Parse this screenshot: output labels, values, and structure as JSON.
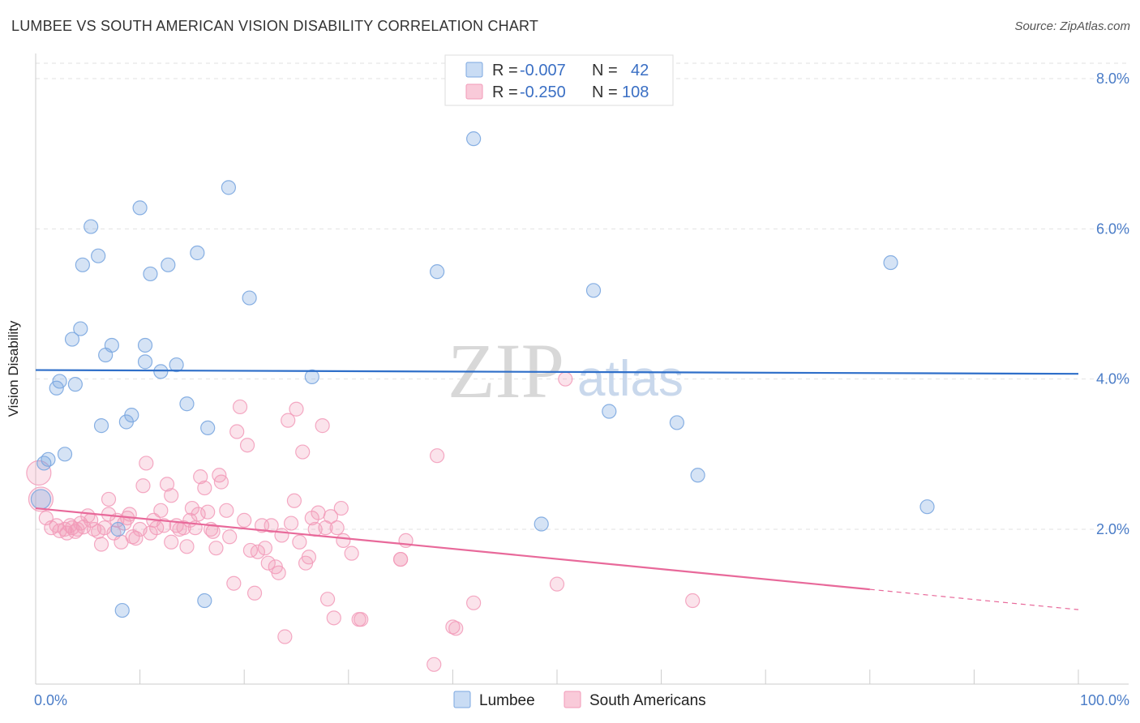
{
  "chart_data": {
    "type": "scatter",
    "title": "LUMBEE VS SOUTH AMERICAN VISION DISABILITY CORRELATION CHART",
    "source": "Source: ZipAtlas.com",
    "xlabel": "",
    "ylabel": "Vision Disability",
    "xlim": [
      0,
      100
    ],
    "ylim": [
      0,
      8.0
    ],
    "x_tick_labels": [
      "0.0%",
      "100.0%"
    ],
    "y_ticks": [
      2.0,
      4.0,
      6.0,
      8.0
    ],
    "y_tick_labels": [
      "2.0%",
      "4.0%",
      "6.0%",
      "8.0%"
    ],
    "watermark": "ZIPatlas",
    "legend": [
      {
        "name": "Lumbee",
        "r_label": "R = ",
        "r_value": "-0.007",
        "n_label": "N = ",
        "n_value": "42",
        "color": "#7ba7e0"
      },
      {
        "name": "South Americans",
        "r_label": "R = ",
        "r_value": "-0.250",
        "n_label": "N = ",
        "n_value": "108",
        "color": "#f29ab8"
      }
    ],
    "series": [
      {
        "name": "Lumbee",
        "color": "#7ba7e0",
        "trend": {
          "x0": 0,
          "y0": 4.12,
          "x1": 100,
          "y1": 4.07
        },
        "points": [
          [
            0.5,
            2.4
          ],
          [
            0.8,
            2.88
          ],
          [
            1.2,
            2.93
          ],
          [
            2.0,
            3.88
          ],
          [
            2.3,
            3.97
          ],
          [
            2.8,
            3.0
          ],
          [
            3.5,
            4.53
          ],
          [
            3.8,
            3.93
          ],
          [
            4.3,
            4.67
          ],
          [
            4.5,
            5.52
          ],
          [
            5.3,
            6.03
          ],
          [
            6.0,
            5.64
          ],
          [
            6.3,
            3.38
          ],
          [
            6.7,
            4.32
          ],
          [
            7.3,
            4.45
          ],
          [
            7.9,
            2.0
          ],
          [
            8.3,
            0.92
          ],
          [
            8.7,
            3.43
          ],
          [
            9.2,
            3.52
          ],
          [
            10.0,
            6.28
          ],
          [
            10.5,
            4.23
          ],
          [
            10.5,
            4.45
          ],
          [
            11.0,
            5.4
          ],
          [
            12.0,
            4.1
          ],
          [
            12.7,
            5.52
          ],
          [
            13.5,
            4.19
          ],
          [
            14.5,
            3.67
          ],
          [
            15.5,
            5.68
          ],
          [
            16.2,
            1.05
          ],
          [
            16.5,
            3.35
          ],
          [
            18.5,
            6.55
          ],
          [
            20.5,
            5.08
          ],
          [
            26.5,
            4.03
          ],
          [
            38.5,
            5.43
          ],
          [
            42.0,
            7.2
          ],
          [
            48.5,
            2.07
          ],
          [
            53.5,
            5.18
          ],
          [
            55.0,
            3.57
          ],
          [
            61.5,
            3.42
          ],
          [
            63.5,
            2.72
          ],
          [
            82.0,
            5.55
          ],
          [
            85.5,
            2.3
          ]
        ]
      },
      {
        "name": "South Americans",
        "color": "#f29ab8",
        "trend": {
          "x0": 0,
          "y0": 2.28,
          "x1": 80,
          "y1": 1.2,
          "dash_x1": 100,
          "dash_y1": 0.93
        },
        "points": [
          [
            0.3,
            2.75
          ],
          [
            0.5,
            2.4
          ],
          [
            1.0,
            2.15
          ],
          [
            1.5,
            2.02
          ],
          [
            2.0,
            2.05
          ],
          [
            2.3,
            1.98
          ],
          [
            2.8,
            2.0
          ],
          [
            3.0,
            1.95
          ],
          [
            3.3,
            2.05
          ],
          [
            3.5,
            2.02
          ],
          [
            3.8,
            1.97
          ],
          [
            4.0,
            2.0
          ],
          [
            4.3,
            2.08
          ],
          [
            4.6,
            2.03
          ],
          [
            5.0,
            2.18
          ],
          [
            5.3,
            2.12
          ],
          [
            5.6,
            2.0
          ],
          [
            6.0,
            1.97
          ],
          [
            6.3,
            1.8
          ],
          [
            6.6,
            2.02
          ],
          [
            7.0,
            2.2
          ],
          [
            7.0,
            2.4
          ],
          [
            7.5,
            1.95
          ],
          [
            7.8,
            2.12
          ],
          [
            8.2,
            1.83
          ],
          [
            8.5,
            2.08
          ],
          [
            8.8,
            2.15
          ],
          [
            9.0,
            2.2
          ],
          [
            9.3,
            1.9
          ],
          [
            9.6,
            1.88
          ],
          [
            10.0,
            2.0
          ],
          [
            10.3,
            2.58
          ],
          [
            10.6,
            2.88
          ],
          [
            11.0,
            1.95
          ],
          [
            11.3,
            2.12
          ],
          [
            11.6,
            2.02
          ],
          [
            12.0,
            2.25
          ],
          [
            12.3,
            2.05
          ],
          [
            12.6,
            2.6
          ],
          [
            13.0,
            1.83
          ],
          [
            13.0,
            2.45
          ],
          [
            13.5,
            2.05
          ],
          [
            13.8,
            2.0
          ],
          [
            14.2,
            2.02
          ],
          [
            14.5,
            1.77
          ],
          [
            14.8,
            2.12
          ],
          [
            15.0,
            2.28
          ],
          [
            15.3,
            2.02
          ],
          [
            15.6,
            2.2
          ],
          [
            15.8,
            2.7
          ],
          [
            16.2,
            2.55
          ],
          [
            16.5,
            2.23
          ],
          [
            16.8,
            2.0
          ],
          [
            17.0,
            1.97
          ],
          [
            17.3,
            1.75
          ],
          [
            17.6,
            2.72
          ],
          [
            17.8,
            2.63
          ],
          [
            18.3,
            2.25
          ],
          [
            18.6,
            1.9
          ],
          [
            19.0,
            1.28
          ],
          [
            19.3,
            3.3
          ],
          [
            19.6,
            3.63
          ],
          [
            20.0,
            2.12
          ],
          [
            20.3,
            3.12
          ],
          [
            20.6,
            1.72
          ],
          [
            21.0,
            1.15
          ],
          [
            21.3,
            1.7
          ],
          [
            21.7,
            2.05
          ],
          [
            22.0,
            1.75
          ],
          [
            22.3,
            1.55
          ],
          [
            22.6,
            2.05
          ],
          [
            23.0,
            1.5
          ],
          [
            23.3,
            1.42
          ],
          [
            23.6,
            1.92
          ],
          [
            23.9,
            0.57
          ],
          [
            24.2,
            3.45
          ],
          [
            24.5,
            2.08
          ],
          [
            24.8,
            2.38
          ],
          [
            25.0,
            3.6
          ],
          [
            25.3,
            1.83
          ],
          [
            25.6,
            3.03
          ],
          [
            25.9,
            1.55
          ],
          [
            26.2,
            1.63
          ],
          [
            26.5,
            2.15
          ],
          [
            26.8,
            2.0
          ],
          [
            27.1,
            2.22
          ],
          [
            27.5,
            3.38
          ],
          [
            27.8,
            2.02
          ],
          [
            28.0,
            1.07
          ],
          [
            28.3,
            2.17
          ],
          [
            28.6,
            0.82
          ],
          [
            28.9,
            2.02
          ],
          [
            29.3,
            2.28
          ],
          [
            29.5,
            1.85
          ],
          [
            30.3,
            1.68
          ],
          [
            31.0,
            0.8
          ],
          [
            31.2,
            0.8
          ],
          [
            35.0,
            1.6
          ],
          [
            35.5,
            1.85
          ],
          [
            38.2,
            0.2
          ],
          [
            38.5,
            2.98
          ],
          [
            40.0,
            0.7
          ],
          [
            40.3,
            0.68
          ],
          [
            42.0,
            1.02
          ],
          [
            50.0,
            1.27
          ],
          [
            50.8,
            4.0
          ],
          [
            63.0,
            1.05
          ],
          [
            35.0,
            1.6
          ]
        ]
      }
    ]
  },
  "bottom_legend": [
    "Lumbee",
    "South Americans"
  ]
}
